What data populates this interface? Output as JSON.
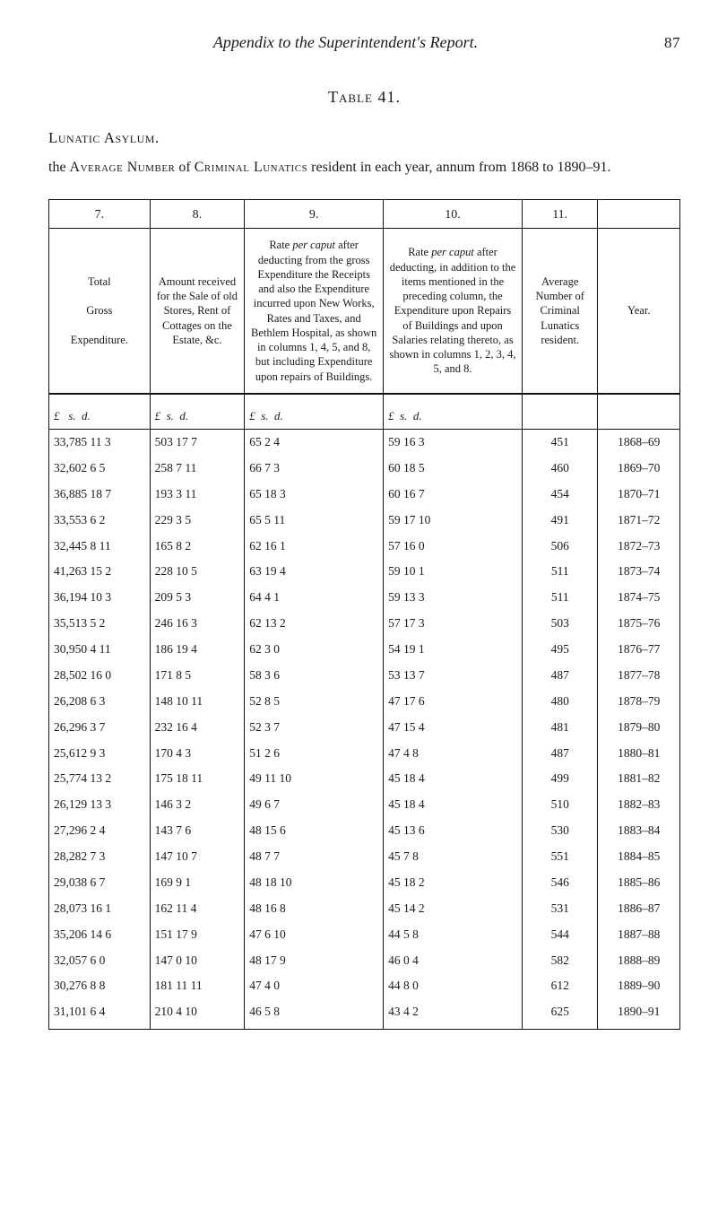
{
  "page": {
    "running_title": "Appendix to the Superintendent's Report.",
    "page_number": "87",
    "table_label": "Table 41.",
    "section": "Lunatic Asylum.",
    "intro_html": "the <span class='sc'>Average Number</span> of <span class='sc'>Criminal Lunatics</span> resident in each year, annum from 1868 to 1890–91."
  },
  "header": {
    "nums": [
      "7.",
      "8.",
      "9.",
      "10.",
      "11.",
      ""
    ],
    "descs": [
      "Total<br><br>Gross<br><br>Expenditure.",
      "Amount received for the Sale of old Stores, Rent of Cottages on the Estate, &c.",
      "Rate <i>per caput</i> after deducting from the gross Expenditure the Receipts and also the Expenditure incurred upon New Works, Rates and Taxes, and Bethlem Hospital, as shown in columns 1, 4, 5, and 8, but including Expenditure upon repairs of Buildings.",
      "Rate <i>per caput</i> after deducting, in addition to the items mentioned in the preceding column, the Expenditure upon Repairs of Buildings and upon Salaries relating thereto, as shown in columns 1, 2, 3, 4, 5, and 8.",
      "Average Number of Criminal Lunatics resident.",
      "Year."
    ],
    "units": [
      "£   s.  d.",
      "£  s.  d.",
      "£  s.  d.",
      "£  s.  d.",
      "",
      ""
    ]
  },
  "rows": [
    {
      "c7": "33,785 11  3",
      "c8": "503 17  7",
      "c9": "65  2  4",
      "c10": "59 16  3",
      "c11": "451",
      "yr": "1868–69"
    },
    {
      "c7": "32,602  6  5",
      "c8": "258  7 11",
      "c9": "66  7  3",
      "c10": "60 18  5",
      "c11": "460",
      "yr": "1869–70"
    },
    {
      "c7": "36,885 18  7",
      "c8": "193  3 11",
      "c9": "65 18  3",
      "c10": "60 16  7",
      "c11": "454",
      "yr": "1870–71"
    },
    {
      "c7": "33,553  6  2",
      "c8": "229  3  5",
      "c9": "65  5 11",
      "c10": "59 17 10",
      "c11": "491",
      "yr": "1871–72"
    },
    {
      "c7": "32,445  8 11",
      "c8": "165  8  2",
      "c9": "62 16  1",
      "c10": "57 16  0",
      "c11": "506",
      "yr": "1872–73"
    },
    {
      "c7": "41,263 15  2",
      "c8": "228 10  5",
      "c9": "63 19  4",
      "c10": "59 10  1",
      "c11": "511",
      "yr": "1873–74"
    },
    {
      "c7": "36,194 10  3",
      "c8": "209  5  3",
      "c9": "64  4  1",
      "c10": "59 13  3",
      "c11": "511",
      "yr": "1874–75"
    },
    {
      "c7": "35,513  5  2",
      "c8": "246 16  3",
      "c9": "62 13  2",
      "c10": "57 17  3",
      "c11": "503",
      "yr": "1875–76"
    },
    {
      "c7": "30,950  4 11",
      "c8": "186 19  4",
      "c9": "62  3  0",
      "c10": "54 19  1",
      "c11": "495",
      "yr": "1876–77"
    },
    {
      "c7": "28,502 16  0",
      "c8": "171  8  5",
      "c9": "58  3  6",
      "c10": "53 13  7",
      "c11": "487",
      "yr": "1877–78"
    },
    {
      "c7": "26,208  6  3",
      "c8": "148 10 11",
      "c9": "52  8  5",
      "c10": "47 17  6",
      "c11": "480",
      "yr": "1878–79"
    },
    {
      "c7": "26,296  3  7",
      "c8": "232 16  4",
      "c9": "52  3  7",
      "c10": "47 15  4",
      "c11": "481",
      "yr": "1879–80"
    },
    {
      "c7": "25,612  9  3",
      "c8": "170  4  3",
      "c9": "51  2  6",
      "c10": "47  4  8",
      "c11": "487",
      "yr": "1880–81"
    },
    {
      "c7": "25,774 13  2",
      "c8": "175 18 11",
      "c9": "49 11 10",
      "c10": "45 18  4",
      "c11": "499",
      "yr": "1881–82"
    },
    {
      "c7": "26,129 13  3",
      "c8": "146  3  2",
      "c9": "49  6  7",
      "c10": "45 18  4",
      "c11": "510",
      "yr": "1882–83"
    },
    {
      "c7": "27,296  2  4",
      "c8": "143  7  6",
      "c9": "48 15  6",
      "c10": "45 13  6",
      "c11": "530",
      "yr": "1883–84"
    },
    {
      "c7": "28,282  7  3",
      "c8": "147 10  7",
      "c9": "48  7  7",
      "c10": "45  7  8",
      "c11": "551",
      "yr": "1884–85"
    },
    {
      "c7": "29,038  6  7",
      "c8": "169  9  1",
      "c9": "48 18 10",
      "c10": "45 18  2",
      "c11": "546",
      "yr": "1885–86"
    },
    {
      "c7": "28,073 16  1",
      "c8": "162 11  4",
      "c9": "48 16  8",
      "c10": "45 14  2",
      "c11": "531",
      "yr": "1886–87"
    },
    {
      "c7": "35,206 14  6",
      "c8": "151 17  9",
      "c9": "47  6 10",
      "c10": "44  5  8",
      "c11": "544",
      "yr": "1887–88"
    },
    {
      "c7": "32,057  6  0",
      "c8": "147  0 10",
      "c9": "48 17  9",
      "c10": "46  0  4",
      "c11": "582",
      "yr": "1888–89"
    },
    {
      "c7": "30,276  8  8",
      "c8": "181 11 11",
      "c9": "47  4  0",
      "c10": "44  8  0",
      "c11": "612",
      "yr": "1889–90"
    },
    {
      "c7": "31,101  6  4",
      "c8": "210  4 10",
      "c9": "46  5  8",
      "c10": "43  4  2",
      "c11": "625",
      "yr": "1890–91"
    }
  ]
}
